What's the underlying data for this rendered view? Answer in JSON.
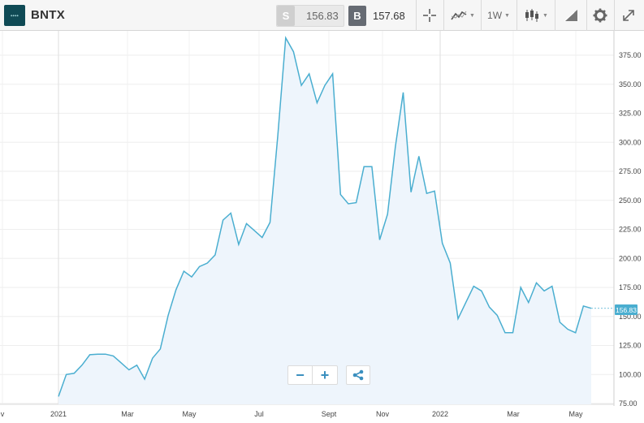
{
  "header": {
    "symbol": "BNTX",
    "sell_tag": "S",
    "sell_price": "156.83",
    "buy_tag": "B",
    "buy_price": "157.68",
    "timeframe": "1W"
  },
  "icons": {
    "logo": "company-logo-icon",
    "crosshair": "crosshair-icon",
    "indicators": "line-chart-icon",
    "chart_type": "candlestick-icon",
    "draw": "draw-tool-icon",
    "settings": "gear-icon",
    "fullscreen": "expand-icon",
    "share": "share-icon"
  },
  "controls": {
    "zoom_out": "−",
    "zoom_in": "+"
  },
  "colors": {
    "line": "#4aaed0",
    "area": "#eef5fc",
    "last_label_bg": "#4aaed0"
  },
  "chart_data": {
    "type": "area",
    "x_tick_labels": [
      "v",
      "2021",
      "Mar",
      "May",
      "Jul",
      "Sept",
      "Nov",
      "2022",
      "Mar",
      "May"
    ],
    "y_tick_labels": [
      "75.00",
      "100.00",
      "125.00",
      "150.00",
      "175.00",
      "200.00",
      "225.00",
      "250.00",
      "275.00",
      "300.00",
      "325.00",
      "350.00",
      "375.00"
    ],
    "ylim": [
      75,
      400
    ],
    "last_value_label": "156.83",
    "series": [
      {
        "values": [
          81,
          100,
          101,
          108,
          117,
          117.5,
          117.5,
          116,
          110,
          104,
          108,
          96,
          114,
          122,
          151,
          173,
          189,
          184,
          193,
          196,
          203,
          233,
          239,
          212,
          230,
          224,
          218,
          231,
          306,
          390,
          378,
          349,
          359,
          334,
          349,
          359,
          255,
          247,
          248,
          279,
          279,
          216,
          238,
          296,
          343,
          257,
          288,
          256,
          258,
          213,
          196,
          148,
          162,
          176,
          172,
          158,
          151,
          136,
          136,
          175,
          162,
          179,
          172,
          176,
          145,
          139,
          136,
          159,
          157
        ]
      }
    ]
  }
}
